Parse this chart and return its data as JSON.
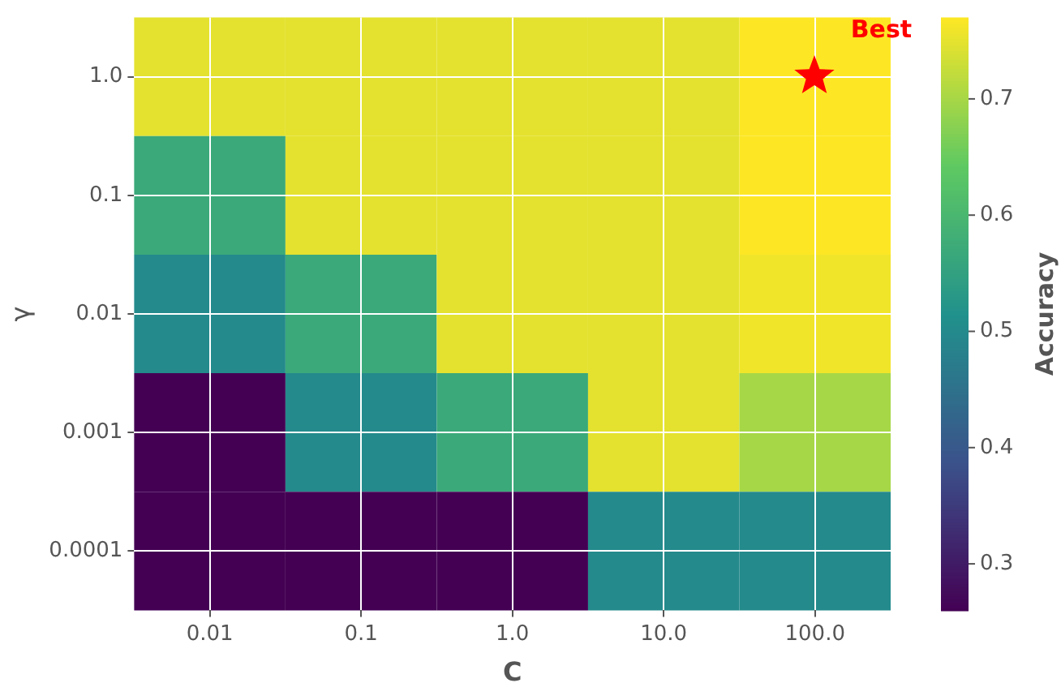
{
  "chart_data": {
    "type": "heatmap",
    "xlabel": "C",
    "ylabel": "γ",
    "clabel": "Accuracy",
    "categories": [
      "0.01",
      "0.1",
      "1.0",
      "10.0",
      "100.0"
    ],
    "y_categories": [
      "1.0",
      "0.1",
      "0.01",
      "0.001",
      "0.0001"
    ],
    "cells": [
      [
        0.75,
        0.75,
        0.75,
        0.75,
        0.77
      ],
      [
        0.57,
        0.75,
        0.75,
        0.75,
        0.77
      ],
      [
        0.5,
        0.57,
        0.75,
        0.75,
        0.76
      ],
      [
        0.26,
        0.5,
        0.57,
        0.75,
        0.7
      ],
      [
        0.26,
        0.26,
        0.26,
        0.5,
        0.5
      ]
    ],
    "clim": [
      0.26,
      0.77
    ],
    "cticks": [
      0.3,
      0.4,
      0.5,
      0.6,
      0.7
    ],
    "grid": true,
    "annotations": [
      {
        "text": "Best",
        "x": "100.0",
        "y": "1.0"
      }
    ]
  }
}
